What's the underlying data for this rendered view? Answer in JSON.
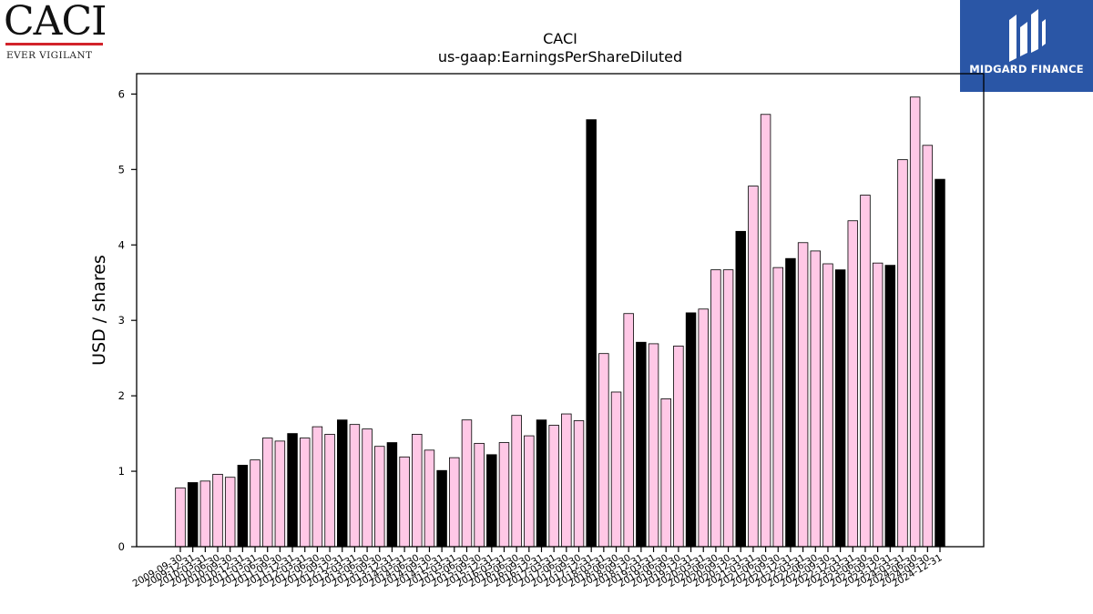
{
  "logos": {
    "left": {
      "wordmark": "CACI",
      "tagline": "EVER VIGILANT",
      "accent": "#d2232a"
    },
    "right": {
      "brand": "MIDGARD FINANCE",
      "background": "#2a56a6"
    }
  },
  "chart_data": {
    "type": "bar",
    "title": "CACI",
    "subtitle": "us-gaap:EarningsPerShareDiluted",
    "xlabel": "",
    "ylabel": "USD / shares",
    "ylim": [
      0,
      6.27
    ],
    "yticks": [
      0,
      1,
      2,
      3,
      4,
      5,
      6
    ],
    "grid": false,
    "colors": {
      "quarter": "#ffc8e6",
      "annual": "#000000",
      "edge": "#000000"
    },
    "categories": [
      "2009-09-30",
      "2009-12-31",
      "2010-03-31",
      "2010-06-30",
      "2010-09-30",
      "2010-12-31",
      "2011-03-31",
      "2011-06-30",
      "2011-09-30",
      "2011-12-31",
      "2012-03-31",
      "2012-06-30",
      "2012-09-30",
      "2012-12-31",
      "2013-03-31",
      "2013-06-30",
      "2013-09-30",
      "2013-12-31",
      "2014-03-31",
      "2014-06-30",
      "2014-09-30",
      "2014-12-31",
      "2015-03-31",
      "2015-06-30",
      "2015-09-30",
      "2015-12-31",
      "2016-03-31",
      "2016-06-30",
      "2016-09-30",
      "2016-12-31",
      "2017-03-31",
      "2017-06-30",
      "2017-09-30",
      "2017-12-31",
      "2018-03-31",
      "2018-06-30",
      "2018-09-30",
      "2018-12-31",
      "2019-03-31",
      "2019-06-30",
      "2019-09-30",
      "2019-12-31",
      "2020-03-31",
      "2020-06-30",
      "2020-09-30",
      "2020-12-31",
      "2021-03-31",
      "2021-06-30",
      "2021-09-30",
      "2021-12-31",
      "2022-03-31",
      "2022-06-30",
      "2022-09-30",
      "2022-12-31",
      "2023-03-31",
      "2023-06-30",
      "2023-09-30",
      "2023-12-31",
      "2024-03-31",
      "2024-06-30",
      "2024-09-30",
      "2024-12-31"
    ],
    "values": [
      0.78,
      0.85,
      0.87,
      0.96,
      0.92,
      1.08,
      1.15,
      1.44,
      1.4,
      1.5,
      1.44,
      1.59,
      1.49,
      1.68,
      1.62,
      1.56,
      1.33,
      1.38,
      1.19,
      1.49,
      1.28,
      1.01,
      1.18,
      1.68,
      1.37,
      1.22,
      1.38,
      1.74,
      1.47,
      1.68,
      1.61,
      1.76,
      1.67,
      5.66,
      2.56,
      2.05,
      3.09,
      2.71,
      2.69,
      1.96,
      2.66,
      3.1,
      3.15,
      3.67,
      3.67,
      4.18,
      4.78,
      5.73,
      3.7,
      3.82,
      4.03,
      3.92,
      3.75,
      3.67,
      4.32,
      4.66,
      3.76,
      3.73,
      5.13,
      5.96,
      5.32,
      4.87
    ],
    "series_type": [
      "quarter",
      "annual",
      "quarter",
      "quarter",
      "quarter",
      "annual",
      "quarter",
      "quarter",
      "quarter",
      "annual",
      "quarter",
      "quarter",
      "quarter",
      "annual",
      "quarter",
      "quarter",
      "quarter",
      "annual",
      "quarter",
      "quarter",
      "quarter",
      "annual",
      "quarter",
      "quarter",
      "quarter",
      "annual",
      "quarter",
      "quarter",
      "quarter",
      "annual",
      "quarter",
      "quarter",
      "quarter",
      "annual",
      "quarter",
      "quarter",
      "quarter",
      "annual",
      "quarter",
      "quarter",
      "quarter",
      "annual",
      "quarter",
      "quarter",
      "quarter",
      "annual",
      "quarter",
      "quarter",
      "quarter",
      "annual",
      "quarter",
      "quarter",
      "quarter",
      "annual",
      "quarter",
      "quarter",
      "quarter",
      "annual",
      "quarter",
      "quarter",
      "quarter",
      "annual"
    ]
  }
}
